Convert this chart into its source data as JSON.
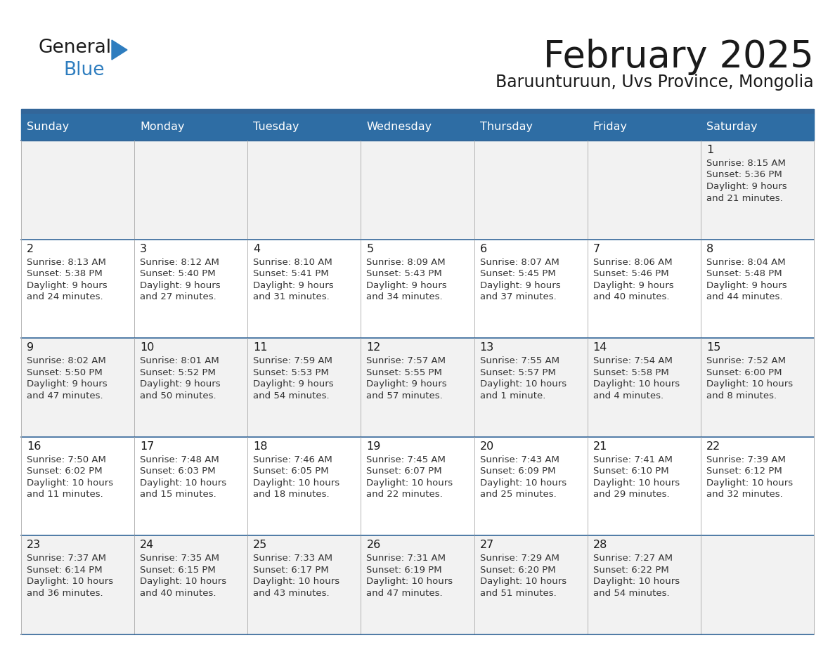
{
  "title": "February 2025",
  "subtitle": "Baruunturuun, Uvs Province, Mongolia",
  "days_of_week": [
    "Sunday",
    "Monday",
    "Tuesday",
    "Wednesday",
    "Thursday",
    "Friday",
    "Saturday"
  ],
  "header_bg": "#2E6DA4",
  "header_text_color": "#FFFFFF",
  "row_bg_colors": [
    "#F2F2F2",
    "#FFFFFF",
    "#F2F2F2",
    "#FFFFFF",
    "#F2F2F2"
  ],
  "divider_color": "#336699",
  "text_color": "#333333",
  "day_number_color": "#1A1A1A",
  "logo_general_color": "#1A1A1A",
  "logo_blue_color": "#2E7DBF",
  "calendar_data": [
    [
      null,
      null,
      null,
      null,
      null,
      null,
      {
        "day": "1",
        "sunrise": "8:15 AM",
        "sunset": "5:36 PM",
        "daylight1": "9 hours",
        "daylight2": "and 21 minutes."
      }
    ],
    [
      {
        "day": "2",
        "sunrise": "8:13 AM",
        "sunset": "5:38 PM",
        "daylight1": "9 hours",
        "daylight2": "and 24 minutes."
      },
      {
        "day": "3",
        "sunrise": "8:12 AM",
        "sunset": "5:40 PM",
        "daylight1": "9 hours",
        "daylight2": "and 27 minutes."
      },
      {
        "day": "4",
        "sunrise": "8:10 AM",
        "sunset": "5:41 PM",
        "daylight1": "9 hours",
        "daylight2": "and 31 minutes."
      },
      {
        "day": "5",
        "sunrise": "8:09 AM",
        "sunset": "5:43 PM",
        "daylight1": "9 hours",
        "daylight2": "and 34 minutes."
      },
      {
        "day": "6",
        "sunrise": "8:07 AM",
        "sunset": "5:45 PM",
        "daylight1": "9 hours",
        "daylight2": "and 37 minutes."
      },
      {
        "day": "7",
        "sunrise": "8:06 AM",
        "sunset": "5:46 PM",
        "daylight1": "9 hours",
        "daylight2": "and 40 minutes."
      },
      {
        "day": "8",
        "sunrise": "8:04 AM",
        "sunset": "5:48 PM",
        "daylight1": "9 hours",
        "daylight2": "and 44 minutes."
      }
    ],
    [
      {
        "day": "9",
        "sunrise": "8:02 AM",
        "sunset": "5:50 PM",
        "daylight1": "9 hours",
        "daylight2": "and 47 minutes."
      },
      {
        "day": "10",
        "sunrise": "8:01 AM",
        "sunset": "5:52 PM",
        "daylight1": "9 hours",
        "daylight2": "and 50 minutes."
      },
      {
        "day": "11",
        "sunrise": "7:59 AM",
        "sunset": "5:53 PM",
        "daylight1": "9 hours",
        "daylight2": "and 54 minutes."
      },
      {
        "day": "12",
        "sunrise": "7:57 AM",
        "sunset": "5:55 PM",
        "daylight1": "9 hours",
        "daylight2": "and 57 minutes."
      },
      {
        "day": "13",
        "sunrise": "7:55 AM",
        "sunset": "5:57 PM",
        "daylight1": "10 hours",
        "daylight2": "and 1 minute."
      },
      {
        "day": "14",
        "sunrise": "7:54 AM",
        "sunset": "5:58 PM",
        "daylight1": "10 hours",
        "daylight2": "and 4 minutes."
      },
      {
        "day": "15",
        "sunrise": "7:52 AM",
        "sunset": "6:00 PM",
        "daylight1": "10 hours",
        "daylight2": "and 8 minutes."
      }
    ],
    [
      {
        "day": "16",
        "sunrise": "7:50 AM",
        "sunset": "6:02 PM",
        "daylight1": "10 hours",
        "daylight2": "and 11 minutes."
      },
      {
        "day": "17",
        "sunrise": "7:48 AM",
        "sunset": "6:03 PM",
        "daylight1": "10 hours",
        "daylight2": "and 15 minutes."
      },
      {
        "day": "18",
        "sunrise": "7:46 AM",
        "sunset": "6:05 PM",
        "daylight1": "10 hours",
        "daylight2": "and 18 minutes."
      },
      {
        "day": "19",
        "sunrise": "7:45 AM",
        "sunset": "6:07 PM",
        "daylight1": "10 hours",
        "daylight2": "and 22 minutes."
      },
      {
        "day": "20",
        "sunrise": "7:43 AM",
        "sunset": "6:09 PM",
        "daylight1": "10 hours",
        "daylight2": "and 25 minutes."
      },
      {
        "day": "21",
        "sunrise": "7:41 AM",
        "sunset": "6:10 PM",
        "daylight1": "10 hours",
        "daylight2": "and 29 minutes."
      },
      {
        "day": "22",
        "sunrise": "7:39 AM",
        "sunset": "6:12 PM",
        "daylight1": "10 hours",
        "daylight2": "and 32 minutes."
      }
    ],
    [
      {
        "day": "23",
        "sunrise": "7:37 AM",
        "sunset": "6:14 PM",
        "daylight1": "10 hours",
        "daylight2": "and 36 minutes."
      },
      {
        "day": "24",
        "sunrise": "7:35 AM",
        "sunset": "6:15 PM",
        "daylight1": "10 hours",
        "daylight2": "and 40 minutes."
      },
      {
        "day": "25",
        "sunrise": "7:33 AM",
        "sunset": "6:17 PM",
        "daylight1": "10 hours",
        "daylight2": "and 43 minutes."
      },
      {
        "day": "26",
        "sunrise": "7:31 AM",
        "sunset": "6:19 PM",
        "daylight1": "10 hours",
        "daylight2": "and 47 minutes."
      },
      {
        "day": "27",
        "sunrise": "7:29 AM",
        "sunset": "6:20 PM",
        "daylight1": "10 hours",
        "daylight2": "and 51 minutes."
      },
      {
        "day": "28",
        "sunrise": "7:27 AM",
        "sunset": "6:22 PM",
        "daylight1": "10 hours",
        "daylight2": "and 54 minutes."
      },
      null
    ]
  ]
}
